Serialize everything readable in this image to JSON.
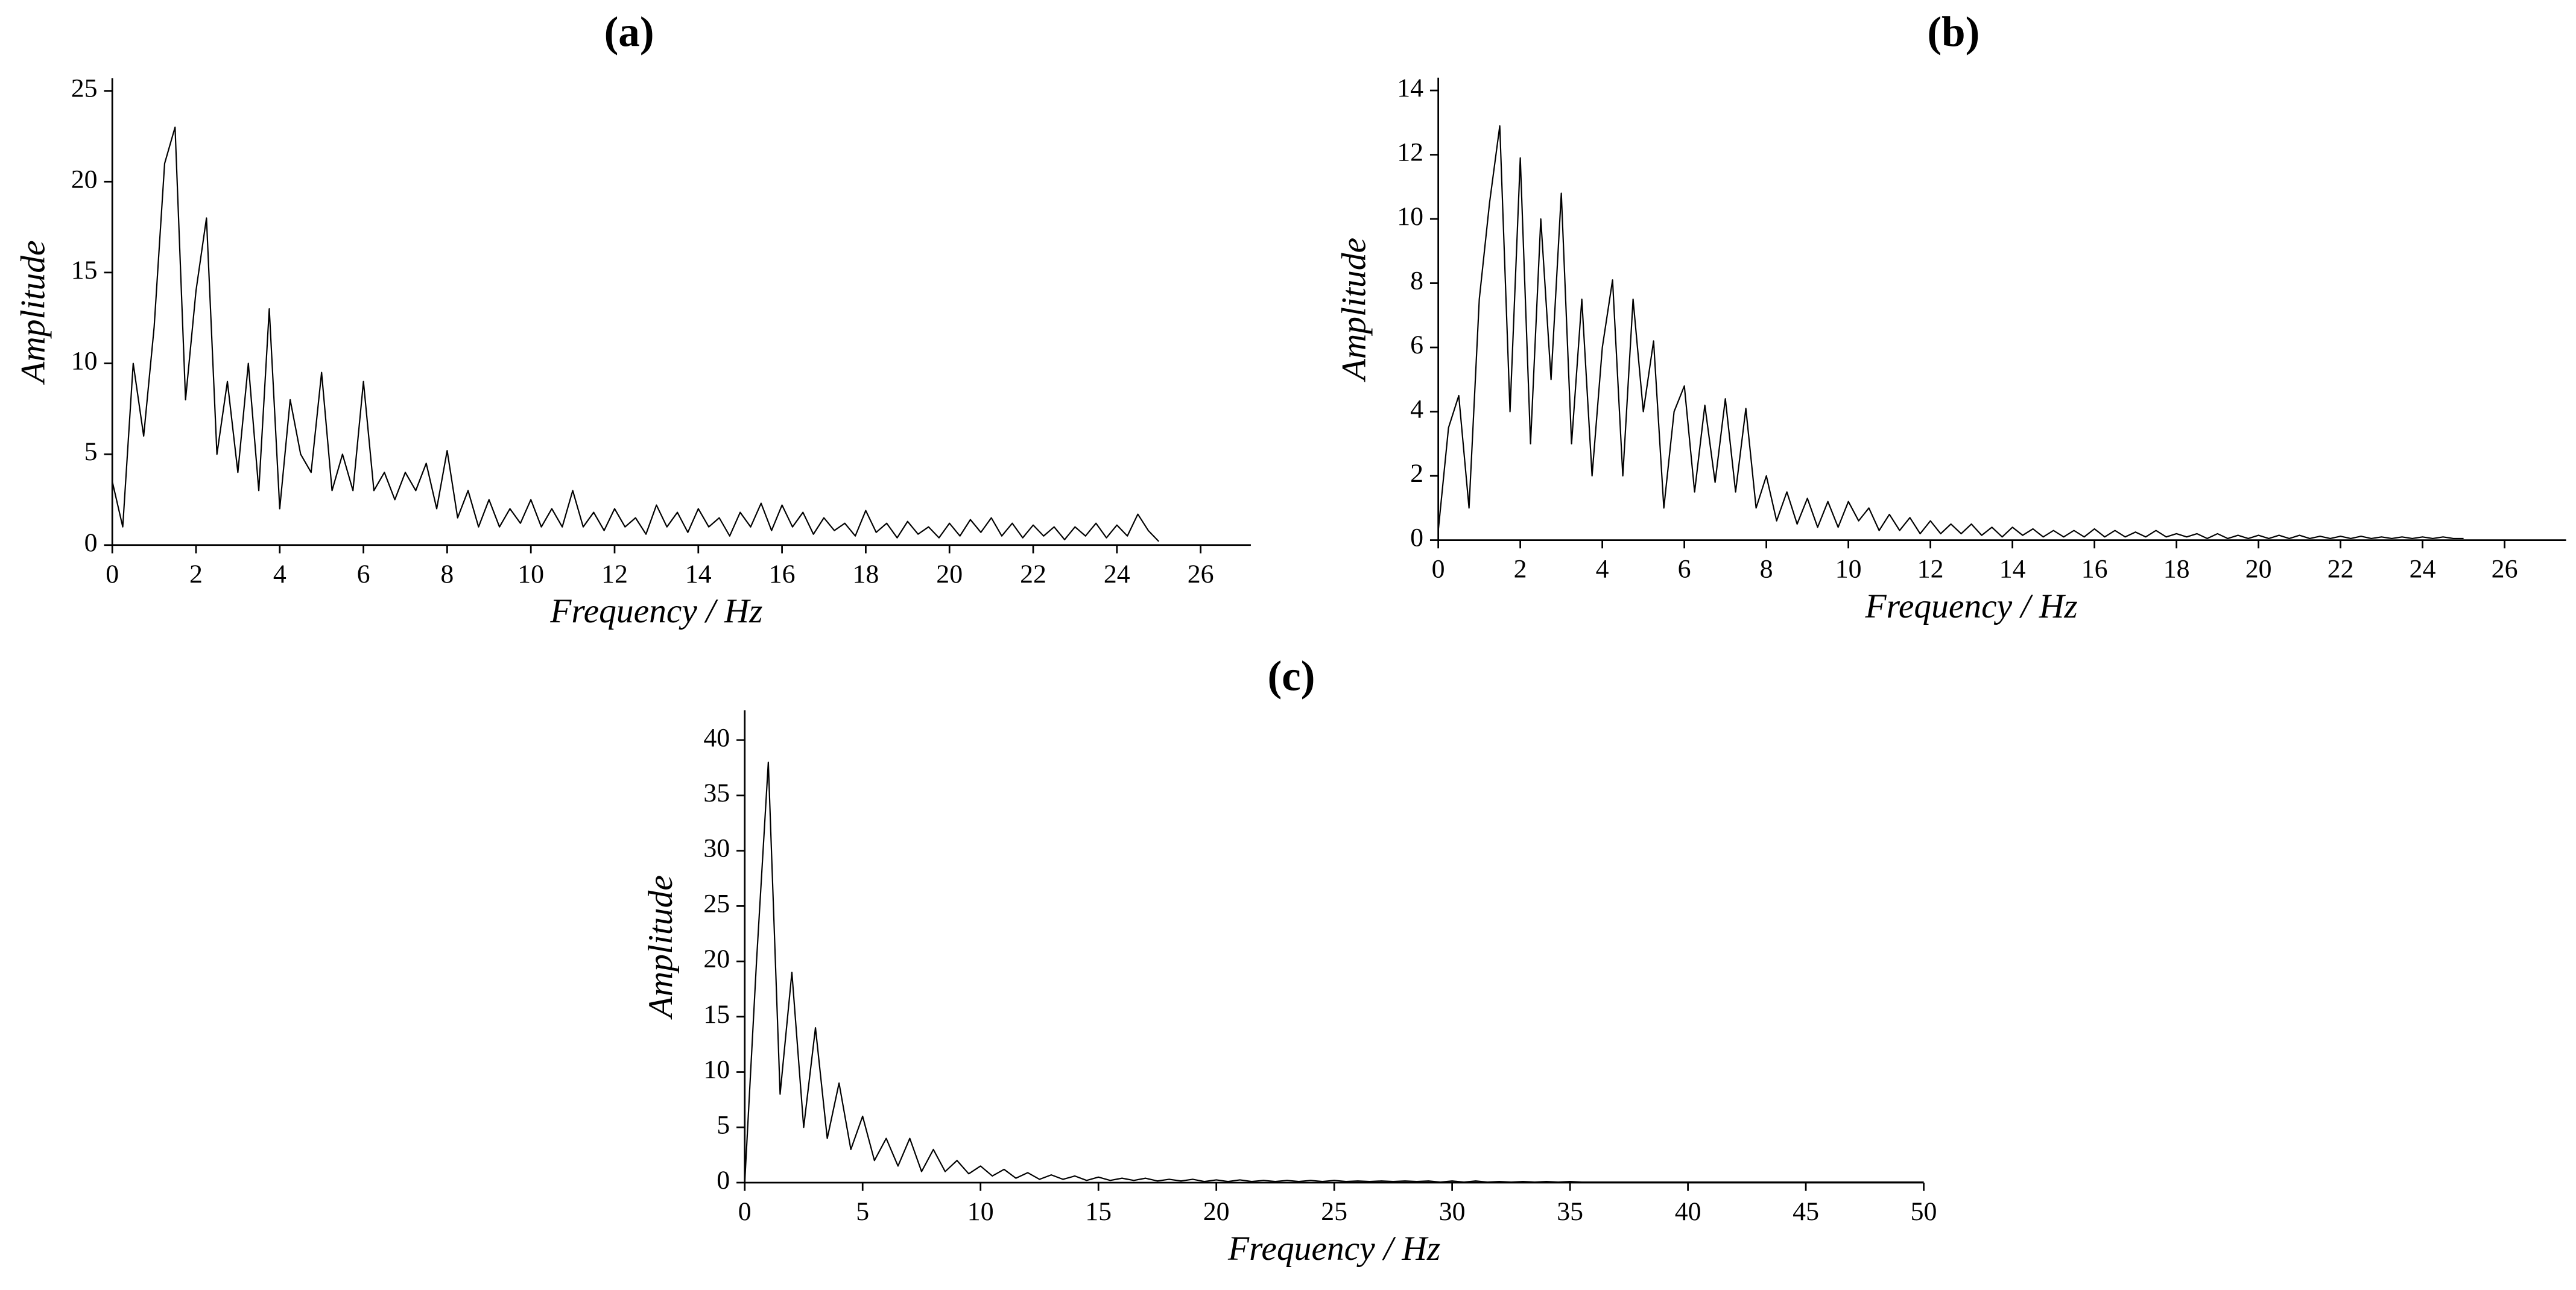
{
  "chart_data": [
    {
      "type": "line",
      "title": "(a)",
      "xlabel": "Frequency / Hz",
      "ylabel": "Amplitude",
      "color": "#000000",
      "x": [
        0,
        0.25,
        0.5,
        0.75,
        1,
        1.25,
        1.5,
        1.75,
        2,
        2.25,
        2.5,
        2.75,
        3,
        3.25,
        3.5,
        3.75,
        4,
        4.25,
        4.5,
        4.75,
        5,
        5.25,
        5.5,
        5.75,
        6,
        6.25,
        6.5,
        6.75,
        7,
        7.25,
        7.5,
        7.75,
        8,
        8.25,
        8.5,
        8.75,
        9,
        9.25,
        9.5,
        9.75,
        10,
        10.25,
        10.5,
        10.75,
        11,
        11.25,
        11.5,
        11.75,
        12,
        12.25,
        12.5,
        12.75,
        13,
        13.25,
        13.5,
        13.75,
        14,
        14.25,
        14.5,
        14.75,
        15,
        15.25,
        15.5,
        15.75,
        16,
        16.25,
        16.5,
        16.75,
        17,
        17.25,
        17.5,
        17.75,
        18,
        18.25,
        18.5,
        18.75,
        19,
        19.25,
        19.5,
        19.75,
        20,
        20.25,
        20.5,
        20.75,
        21,
        21.25,
        21.5,
        21.75,
        22,
        22.25,
        22.5,
        22.75,
        23,
        23.25,
        23.5,
        23.75,
        24,
        24.25,
        24.5,
        24.75,
        25
      ],
      "values": [
        3.5,
        1,
        10,
        6,
        12,
        21,
        23,
        8,
        14,
        18,
        5,
        9,
        4,
        10,
        3,
        13,
        2,
        8,
        5,
        4,
        9.5,
        3,
        5,
        3,
        9,
        3,
        4,
        2.5,
        4,
        3,
        4.5,
        2,
        5.2,
        1.5,
        3,
        1,
        2.5,
        1,
        2,
        1.2,
        2.5,
        1,
        2,
        1,
        3,
        1,
        1.8,
        0.8,
        2,
        1,
        1.5,
        0.6,
        2.2,
        1,
        1.8,
        0.7,
        2,
        1,
        1.5,
        0.5,
        1.8,
        1,
        2.3,
        0.8,
        2.2,
        1,
        1.8,
        0.6,
        1.5,
        0.8,
        1.2,
        0.5,
        1.9,
        0.7,
        1.2,
        0.4,
        1.3,
        0.6,
        1,
        0.4,
        1.2,
        0.5,
        1.4,
        0.7,
        1.5,
        0.5,
        1.2,
        0.4,
        1.1,
        0.5,
        1,
        0.3,
        1,
        0.5,
        1.2,
        0.4,
        1.1,
        0.5,
        1.7,
        0.8,
        0.2
      ],
      "xlim": [
        0,
        27.2
      ],
      "ylim": [
        0,
        25.7
      ],
      "xticks": [
        0,
        2,
        4,
        6,
        8,
        10,
        12,
        14,
        16,
        18,
        20,
        22,
        24,
        26
      ],
      "yticks": [
        0,
        5,
        10,
        15,
        20,
        25
      ]
    },
    {
      "type": "line",
      "title": "(b)",
      "xlabel": "Frequency / Hz",
      "ylabel": "Amplitude",
      "color": "#000000",
      "x": [
        0,
        0.25,
        0.5,
        0.75,
        1,
        1.25,
        1.5,
        1.75,
        2,
        2.25,
        2.5,
        2.75,
        3,
        3.25,
        3.5,
        3.75,
        4,
        4.25,
        4.5,
        4.75,
        5,
        5.25,
        5.5,
        5.75,
        6,
        6.25,
        6.5,
        6.75,
        7,
        7.25,
        7.5,
        7.75,
        8,
        8.25,
        8.5,
        8.75,
        9,
        9.25,
        9.5,
        9.75,
        10,
        10.25,
        10.5,
        10.75,
        11,
        11.25,
        11.5,
        11.75,
        12,
        12.25,
        12.5,
        12.75,
        13,
        13.25,
        13.5,
        13.75,
        14,
        14.25,
        14.5,
        14.75,
        15,
        15.25,
        15.5,
        15.75,
        16,
        16.25,
        16.5,
        16.75,
        17,
        17.25,
        17.5,
        17.75,
        18,
        18.25,
        18.5,
        18.75,
        19,
        19.25,
        19.5,
        19.75,
        20,
        20.25,
        20.5,
        20.75,
        21,
        21.25,
        21.5,
        21.75,
        22,
        22.25,
        22.5,
        22.75,
        23,
        23.25,
        23.5,
        23.75,
        24,
        24.25,
        24.5,
        24.75,
        25
      ],
      "values": [
        0.3,
        3.5,
        4.5,
        1,
        7.5,
        10.5,
        12.9,
        4,
        11.9,
        3,
        10,
        5,
        10.8,
        3,
        7.5,
        2,
        6,
        8.1,
        2,
        7.5,
        4,
        6.2,
        1,
        4,
        4.8,
        1.5,
        4.2,
        1.8,
        4.4,
        1.5,
        4.1,
        1,
        2,
        0.6,
        1.5,
        0.5,
        1.3,
        0.4,
        1.2,
        0.4,
        1.2,
        0.6,
        1,
        0.3,
        0.8,
        0.3,
        0.7,
        0.2,
        0.6,
        0.2,
        0.5,
        0.2,
        0.5,
        0.15,
        0.4,
        0.1,
        0.4,
        0.15,
        0.35,
        0.1,
        0.3,
        0.1,
        0.3,
        0.1,
        0.35,
        0.1,
        0.3,
        0.1,
        0.25,
        0.1,
        0.3,
        0.1,
        0.2,
        0.1,
        0.2,
        0.05,
        0.2,
        0.05,
        0.15,
        0.05,
        0.15,
        0.05,
        0.15,
        0.05,
        0.15,
        0.05,
        0.12,
        0.05,
        0.12,
        0.05,
        0.12,
        0.05,
        0.1,
        0.05,
        0.1,
        0.05,
        0.1,
        0.05,
        0.1,
        0.05,
        0.05
      ],
      "xlim": [
        0,
        27.5
      ],
      "ylim": [
        0,
        14.4
      ],
      "xticks": [
        0,
        2,
        4,
        6,
        8,
        10,
        12,
        14,
        16,
        18,
        20,
        22,
        24,
        26
      ],
      "yticks": [
        0,
        2,
        4,
        6,
        8,
        10,
        12,
        14
      ]
    },
    {
      "type": "line",
      "title": "(c)",
      "xlabel": "Frequency / Hz",
      "ylabel": "Amplitude",
      "color": "#000000",
      "x": [
        0,
        0.5,
        1,
        1.5,
        2,
        2.5,
        3,
        3.5,
        4,
        4.5,
        5,
        5.5,
        6,
        6.5,
        7,
        7.5,
        8,
        8.5,
        9,
        9.5,
        10,
        10.5,
        11,
        11.5,
        12,
        12.5,
        13,
        13.5,
        14,
        14.5,
        15,
        15.5,
        16,
        16.5,
        17,
        17.5,
        18,
        18.5,
        19,
        19.5,
        20,
        20.5,
        21,
        21.5,
        22,
        22.5,
        23,
        23.5,
        24,
        24.5,
        25,
        25.5,
        26,
        26.5,
        27,
        27.5,
        28,
        28.5,
        29,
        29.5,
        30,
        30.5,
        31,
        31.5,
        32,
        32.5,
        33,
        33.5,
        34,
        34.5,
        35,
        35.5,
        36,
        36.5,
        37,
        37.5,
        38,
        38.5,
        39,
        39.5,
        40,
        40.5,
        41,
        41.5,
        42,
        42.5,
        43,
        43.5,
        44,
        44.5,
        45,
        45.5,
        46,
        46.5,
        47,
        47.5,
        48,
        48.5,
        49,
        49.5,
        50
      ],
      "values": [
        0,
        20,
        38,
        8,
        19,
        5,
        14,
        4,
        9,
        3,
        6,
        2,
        4,
        1.5,
        4,
        1,
        3,
        1,
        2,
        0.8,
        1.5,
        0.6,
        1.2,
        0.4,
        0.9,
        0.3,
        0.7,
        0.3,
        0.6,
        0.2,
        0.5,
        0.2,
        0.4,
        0.2,
        0.4,
        0.15,
        0.3,
        0.15,
        0.3,
        0.1,
        0.25,
        0.1,
        0.25,
        0.1,
        0.2,
        0.1,
        0.2,
        0.1,
        0.2,
        0.1,
        0.2,
        0.1,
        0.15,
        0.1,
        0.15,
        0.1,
        0.15,
        0.1,
        0.15,
        0.05,
        0.15,
        0.05,
        0.15,
        0.05,
        0.1,
        0.05,
        0.1,
        0.05,
        0.1,
        0.05,
        0.1,
        0.05,
        0.05,
        0.05,
        0.05,
        0.05,
        0.05,
        0.05,
        0.05,
        0.05,
        0.05,
        0.05,
        0.05,
        0.05,
        0.05,
        0.05,
        0.05,
        0.05,
        0.05,
        0.05,
        0.05,
        0.05,
        0.05,
        0.05,
        0.05,
        0.05,
        0.05,
        0.05,
        0.05,
        0.05,
        0.05
      ],
      "xlim": [
        0,
        50
      ],
      "ylim": [
        0,
        42.7
      ],
      "xticks": [
        0,
        5,
        10,
        15,
        20,
        25,
        30,
        35,
        40,
        45,
        50
      ],
      "yticks": [
        0,
        5,
        10,
        15,
        20,
        25,
        30,
        35,
        40
      ]
    }
  ]
}
